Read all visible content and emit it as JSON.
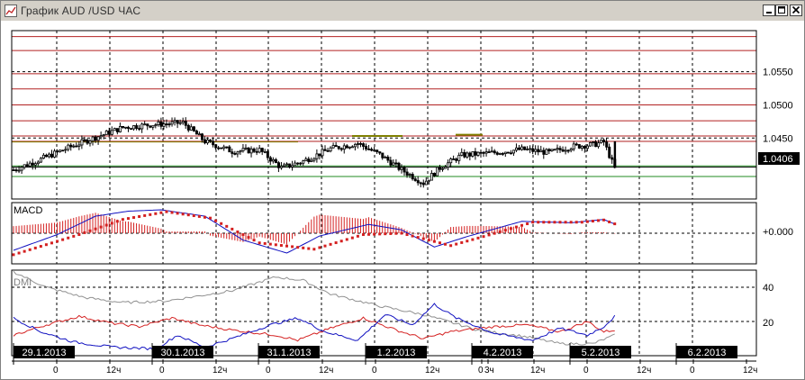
{
  "window": {
    "title": "График AUD /USD  ЧАС"
  },
  "colors": {
    "bull": "#ffffff",
    "bear": "#000000",
    "resistance": "#b22222",
    "support": "#228b22",
    "olive": "#808000",
    "macd_line": "#1010c0",
    "macd_signal": "#d42020",
    "macd_hist": "#d42020",
    "dmi_adx": "#909090",
    "dmi_plus": "#1010c0",
    "dmi_minus": "#d42020"
  },
  "chart_data": [
    {
      "panel": "price",
      "type": "candlestick",
      "ylim": [
        1.0358,
        1.0612
      ],
      "y_ticks": [
        "1.0550",
        "1.0500",
        "1.0450",
        "1.0406"
      ],
      "current_price": "1.0406",
      "resistance_levels": [
        1.0603,
        1.0582,
        1.0547,
        1.0524,
        1.05,
        1.0476,
        1.0453,
        1.0445
      ],
      "support_levels": [
        1.0408,
        1.0392
      ],
      "olive_levels": [
        1.0444
      ],
      "x_labels": [
        "0",
        "12",
        "0",
        "12",
        "0",
        "12",
        "0",
        "12",
        "0",
        "3",
        "12",
        "0",
        "12",
        "0",
        "12"
      ],
      "date_labels": [
        "29.1.2013",
        "30.1.2013",
        "31.1.2013",
        "1.2.2013",
        "4.2.2013",
        "5.2.2013",
        "6.2.2013"
      ],
      "anchors": [
        [
          0,
          1.0402
        ],
        [
          10,
          1.0418
        ],
        [
          18,
          1.0432
        ],
        [
          28,
          1.0448
        ],
        [
          40,
          1.0466
        ],
        [
          50,
          1.047
        ],
        [
          62,
          1.0473
        ],
        [
          70,
          1.0445
        ],
        [
          80,
          1.043
        ],
        [
          90,
          1.0432
        ],
        [
          98,
          1.0405
        ],
        [
          106,
          1.0415
        ],
        [
          116,
          1.0434
        ],
        [
          126,
          1.0442
        ],
        [
          134,
          1.0425
        ],
        [
          142,
          1.0402
        ],
        [
          150,
          1.0382
        ],
        [
          156,
          1.0405
        ],
        [
          164,
          1.0424
        ],
        [
          176,
          1.0428
        ],
        [
          186,
          1.0433
        ],
        [
          196,
          1.0428
        ],
        [
          204,
          1.0437
        ],
        [
          212,
          1.044
        ],
        [
          216,
          1.0444
        ],
        [
          220,
          1.0404
        ]
      ]
    },
    {
      "panel": "macd",
      "type": "line",
      "title": "MACD",
      "y_ticks": [
        "+0.000"
      ],
      "ylim": [
        -1,
        1
      ],
      "macd_anchors": [
        [
          0,
          -0.62
        ],
        [
          16,
          -0.05
        ],
        [
          30,
          0.62
        ],
        [
          42,
          0.8
        ],
        [
          54,
          0.85
        ],
        [
          70,
          0.62
        ],
        [
          84,
          -0.25
        ],
        [
          100,
          -0.72
        ],
        [
          112,
          -0.1
        ],
        [
          130,
          0.32
        ],
        [
          142,
          0.12
        ],
        [
          154,
          -0.5
        ],
        [
          166,
          -0.12
        ],
        [
          186,
          0.43
        ],
        [
          204,
          0.38
        ],
        [
          216,
          0.5
        ],
        [
          220,
          0.33
        ]
      ],
      "signal_anchors": [
        [
          0,
          -0.78
        ],
        [
          24,
          -0.05
        ],
        [
          40,
          0.5
        ],
        [
          56,
          0.78
        ],
        [
          72,
          0.55
        ],
        [
          90,
          -0.35
        ],
        [
          110,
          -0.58
        ],
        [
          128,
          -0.05
        ],
        [
          142,
          0.0
        ],
        [
          160,
          -0.45
        ],
        [
          172,
          -0.12
        ],
        [
          190,
          0.4
        ],
        [
          208,
          0.4
        ],
        [
          216,
          0.48
        ],
        [
          220,
          0.34
        ]
      ]
    },
    {
      "panel": "dmi",
      "type": "line",
      "title": "DMI",
      "y_ticks": [
        "40",
        "20"
      ],
      "ylim": [
        0,
        50
      ],
      "adx_anchors": [
        [
          0,
          49
        ],
        [
          12,
          40
        ],
        [
          26,
          34
        ],
        [
          40,
          31
        ],
        [
          56,
          32
        ],
        [
          68,
          35
        ],
        [
          80,
          38
        ],
        [
          96,
          46
        ],
        [
          106,
          44
        ],
        [
          116,
          36
        ],
        [
          134,
          29
        ],
        [
          150,
          24
        ],
        [
          170,
          15
        ],
        [
          188,
          11
        ],
        [
          200,
          7
        ],
        [
          212,
          7
        ],
        [
          220,
          12
        ]
      ],
      "plus_di_anchors": [
        [
          0,
          22
        ],
        [
          10,
          14
        ],
        [
          22,
          8
        ],
        [
          36,
          5
        ],
        [
          52,
          4
        ],
        [
          60,
          12
        ],
        [
          70,
          5
        ],
        [
          80,
          10
        ],
        [
          94,
          18
        ],
        [
          104,
          22
        ],
        [
          114,
          14
        ],
        [
          126,
          9
        ],
        [
          136,
          24
        ],
        [
          146,
          18
        ],
        [
          154,
          30
        ],
        [
          162,
          22
        ],
        [
          176,
          13
        ],
        [
          190,
          9
        ],
        [
          200,
          16
        ],
        [
          210,
          12
        ],
        [
          216,
          17
        ],
        [
          220,
          23
        ]
      ],
      "minus_di_anchors": [
        [
          0,
          12
        ],
        [
          12,
          18
        ],
        [
          24,
          23
        ],
        [
          36,
          19
        ],
        [
          46,
          17
        ],
        [
          58,
          22
        ],
        [
          68,
          18
        ],
        [
          80,
          15
        ],
        [
          96,
          12
        ],
        [
          104,
          9
        ],
        [
          116,
          16
        ],
        [
          128,
          22
        ],
        [
          140,
          15
        ],
        [
          150,
          10
        ],
        [
          160,
          14
        ],
        [
          176,
          17
        ],
        [
          188,
          18
        ],
        [
          200,
          14
        ],
        [
          210,
          20
        ],
        [
          216,
          14
        ],
        [
          220,
          15
        ]
      ]
    }
  ]
}
